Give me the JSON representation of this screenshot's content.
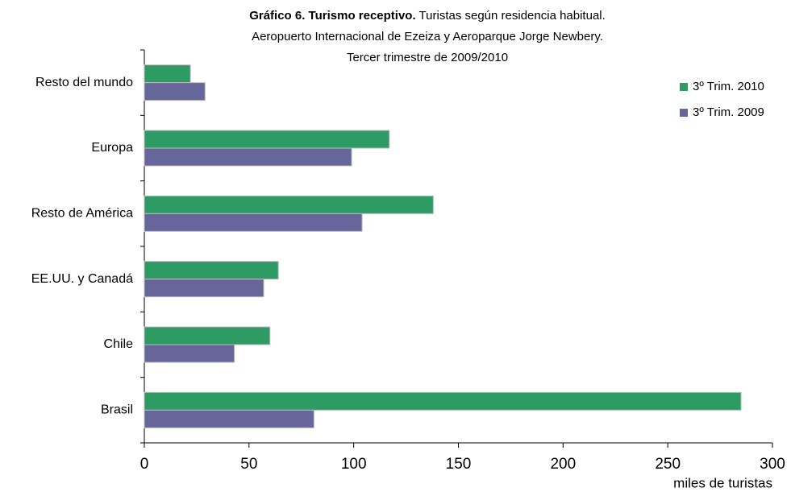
{
  "chart_data": {
    "type": "hbar",
    "title_bold": "Gráfico 6. Turismo receptivo.",
    "title": "Turistas según residencia habitual.",
    "subtitle": [
      "Aeropuerto Internacional de Ezeiza y Aeroparque Jorge Newbery.",
      "Tercer trimestre de 2009/2010"
    ],
    "categories": [
      "Resto del mundo",
      "Europa",
      "Resto de América",
      "EE.UU. y Canadá",
      "Chile",
      "Brasil"
    ],
    "series": [
      {
        "name": "3º Trim. 2010",
        "color": "#2e9a64",
        "values": [
          22,
          117,
          138,
          64,
          60,
          285
        ]
      },
      {
        "name": "3º Trim. 2009",
        "color": "#66669a",
        "values": [
          29,
          99,
          104,
          57,
          43,
          81
        ]
      }
    ],
    "xlim": [
      0,
      300
    ],
    "xticks": [
      0,
      50,
      100,
      150,
      200,
      250,
      300
    ],
    "x_label": "miles de turistas",
    "legend": "upper right"
  }
}
